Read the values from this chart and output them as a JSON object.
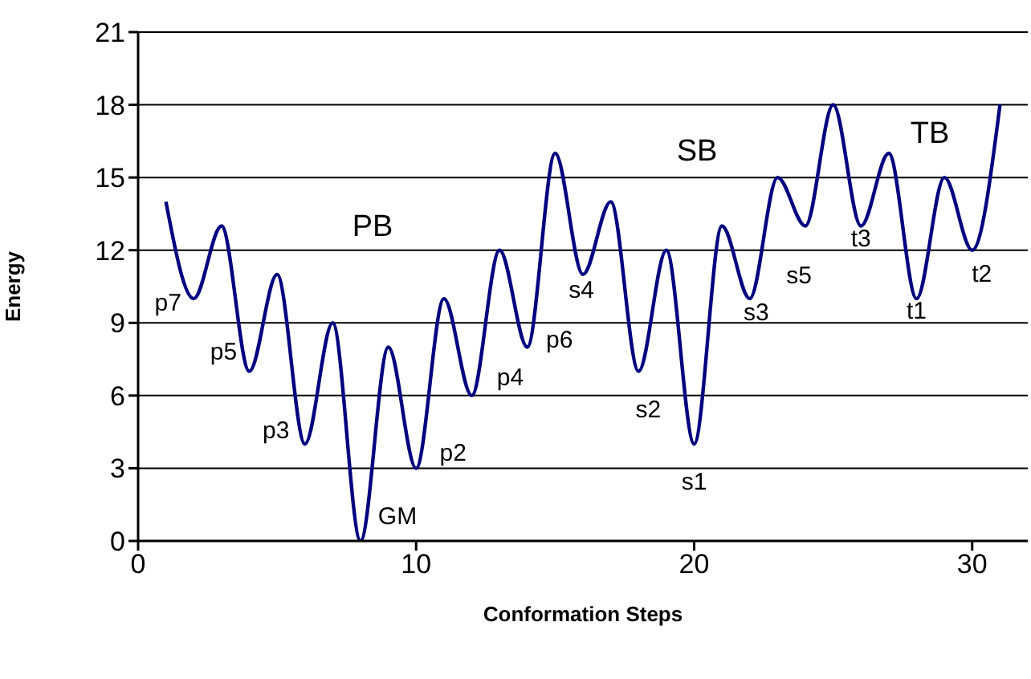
{
  "chart_data": {
    "type": "line",
    "xlabel": "Conformation Steps",
    "ylabel": "Energy",
    "x": [
      1,
      2,
      3,
      4,
      5,
      6,
      7,
      8,
      9,
      10,
      11,
      12,
      13,
      14,
      15,
      16,
      17,
      18,
      19,
      20,
      21,
      22,
      23,
      24,
      25,
      26,
      27,
      28,
      29,
      30,
      31
    ],
    "series": [
      {
        "color": "#000080",
        "values": [
          14,
          10,
          13,
          7,
          11,
          4,
          9,
          0,
          8,
          3,
          10,
          6,
          12,
          8,
          16,
          11,
          14,
          7,
          12,
          4,
          13,
          10,
          15,
          13,
          18,
          13,
          16,
          10,
          15,
          12,
          18
        ]
      }
    ],
    "xlim": [
      0,
      32
    ],
    "xticks": [
      0,
      10,
      20,
      30
    ],
    "ylim": [
      0,
      21
    ],
    "yticks": [
      0,
      3,
      6,
      9,
      12,
      15,
      18,
      21
    ],
    "grid": "y",
    "annotations": [
      {
        "text": "p7",
        "x": 2,
        "y": 10
      },
      {
        "text": "p5",
        "x": 4,
        "y": 7
      },
      {
        "text": "p3",
        "x": 6,
        "y": 4
      },
      {
        "text": "GM",
        "x": 8,
        "y": 0
      },
      {
        "text": "p2",
        "x": 10,
        "y": 3
      },
      {
        "text": "p4",
        "x": 12,
        "y": 6
      },
      {
        "text": "p6",
        "x": 14,
        "y": 8
      },
      {
        "text": "s4",
        "x": 16,
        "y": 11
      },
      {
        "text": "s2",
        "x": 18,
        "y": 7
      },
      {
        "text": "s1",
        "x": 20,
        "y": 4
      },
      {
        "text": "s3",
        "x": 22,
        "y": 10
      },
      {
        "text": "s5",
        "x": 24,
        "y": 13
      },
      {
        "text": "t3",
        "x": 26,
        "y": 13
      },
      {
        "text": "t1",
        "x": 28,
        "y": 10
      },
      {
        "text": "t2",
        "x": 30,
        "y": 12
      },
      "PB",
      "SB",
      "TB"
    ]
  }
}
